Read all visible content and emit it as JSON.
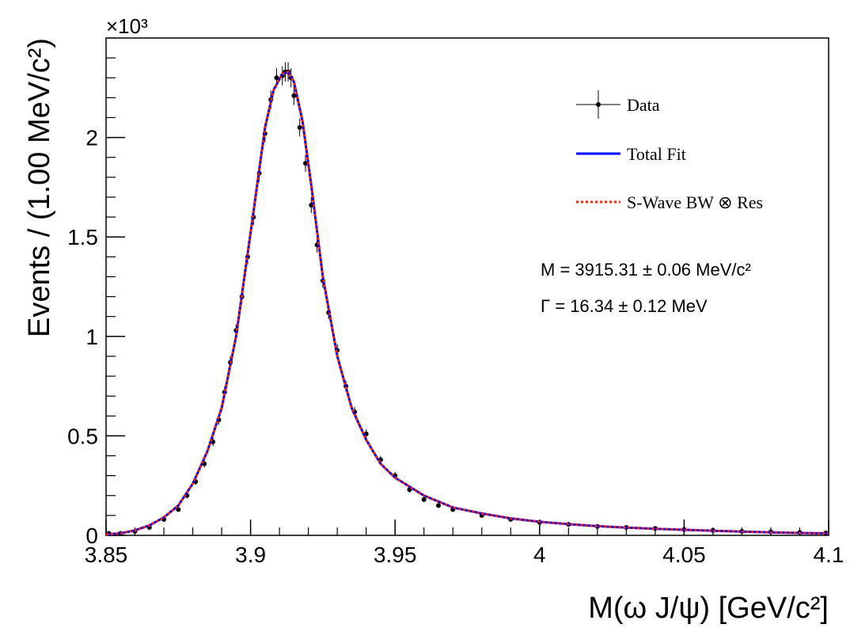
{
  "chart_data": {
    "type": "line",
    "xlabel": "M(ω J/ψ) [GeV/c²]",
    "ylabel": "Events / (1.00 MeV/c²)",
    "y_multiplier": "×10³",
    "xlim": [
      3.85,
      4.1
    ],
    "ylim": [
      0,
      2.5
    ],
    "y_units_scale": 1000,
    "x_ticks": [
      3.85,
      3.9,
      3.95,
      4.0,
      4.05,
      4.1
    ],
    "x_tick_labels": [
      "3.85",
      "3.9",
      "3.95",
      "4",
      "4.05",
      "4.1"
    ],
    "y_ticks": [
      0,
      0.5,
      1,
      1.5,
      2
    ],
    "y_tick_labels": [
      "0",
      "0.5",
      "1",
      "1.5",
      "2"
    ],
    "grid": false,
    "legend_position": "top-right",
    "series": [
      {
        "name": "Data",
        "style": "points-with-errors",
        "color": "#000000",
        "x": [
          3.851,
          3.855,
          3.86,
          3.865,
          3.87,
          3.875,
          3.878,
          3.881,
          3.884,
          3.887,
          3.889,
          3.891,
          3.893,
          3.895,
          3.897,
          3.899,
          3.901,
          3.903,
          3.905,
          3.907,
          3.909,
          3.911,
          3.912,
          3.913,
          3.914,
          3.915,
          3.917,
          3.919,
          3.921,
          3.923,
          3.925,
          3.927,
          3.93,
          3.933,
          3.936,
          3.94,
          3.945,
          3.95,
          3.955,
          3.96,
          3.965,
          3.97,
          3.98,
          3.99,
          4.0,
          4.01,
          4.02,
          4.03,
          4.04,
          4.05,
          4.06,
          4.07,
          4.08,
          4.09,
          4.099
        ],
        "y": [
          0.01,
          0.01,
          0.02,
          0.04,
          0.08,
          0.13,
          0.2,
          0.27,
          0.36,
          0.47,
          0.58,
          0.72,
          0.87,
          1.03,
          1.2,
          1.4,
          1.6,
          1.82,
          2.02,
          2.19,
          2.3,
          2.31,
          2.33,
          2.33,
          2.3,
          2.21,
          2.05,
          1.87,
          1.66,
          1.46,
          1.28,
          1.12,
          0.93,
          0.75,
          0.62,
          0.51,
          0.38,
          0.3,
          0.23,
          0.18,
          0.15,
          0.13,
          0.1,
          0.08,
          0.065,
          0.055,
          0.045,
          0.04,
          0.035,
          0.03,
          0.025,
          0.02,
          0.018,
          0.015,
          0.012
        ]
      },
      {
        "name": "Total Fit",
        "style": "solid-line",
        "color": "#0000ff",
        "x": [
          3.85,
          3.855,
          3.86,
          3.865,
          3.87,
          3.875,
          3.88,
          3.885,
          3.89,
          3.895,
          3.9,
          3.905,
          3.908,
          3.911,
          3.913,
          3.915,
          3.918,
          3.921,
          3.925,
          3.93,
          3.935,
          3.94,
          3.945,
          3.95,
          3.96,
          3.97,
          3.98,
          3.99,
          4.0,
          4.01,
          4.02,
          4.03,
          4.04,
          4.05,
          4.06,
          4.07,
          4.08,
          4.09,
          4.1
        ],
        "y": [
          0.005,
          0.01,
          0.025,
          0.05,
          0.09,
          0.15,
          0.26,
          0.42,
          0.64,
          1.0,
          1.52,
          2.05,
          2.24,
          2.32,
          2.33,
          2.28,
          2.08,
          1.76,
          1.3,
          0.9,
          0.64,
          0.48,
          0.36,
          0.29,
          0.2,
          0.14,
          0.11,
          0.085,
          0.068,
          0.056,
          0.046,
          0.039,
          0.033,
          0.028,
          0.023,
          0.019,
          0.015,
          0.012,
          0.01
        ]
      },
      {
        "name": "S-Wave BW ⊗ Res",
        "style": "dotted-line",
        "color": "#ff2200",
        "x": [
          3.85,
          3.855,
          3.86,
          3.865,
          3.87,
          3.875,
          3.88,
          3.885,
          3.89,
          3.895,
          3.9,
          3.905,
          3.908,
          3.911,
          3.913,
          3.915,
          3.918,
          3.921,
          3.925,
          3.93,
          3.935,
          3.94,
          3.945,
          3.95,
          3.96,
          3.97,
          3.98,
          3.99,
          4.0,
          4.01,
          4.02,
          4.03,
          4.04,
          4.05,
          4.06,
          4.07,
          4.08,
          4.09,
          4.1
        ],
        "y": [
          0.005,
          0.01,
          0.025,
          0.05,
          0.09,
          0.15,
          0.26,
          0.42,
          0.64,
          1.0,
          1.52,
          2.05,
          2.24,
          2.32,
          2.33,
          2.28,
          2.08,
          1.76,
          1.3,
          0.9,
          0.64,
          0.48,
          0.36,
          0.29,
          0.2,
          0.14,
          0.11,
          0.085,
          0.068,
          0.056,
          0.046,
          0.039,
          0.033,
          0.028,
          0.023,
          0.019,
          0.015,
          0.012,
          0.01
        ]
      }
    ],
    "legend": [
      {
        "label": "Data",
        "style": "marker"
      },
      {
        "label": "Total Fit",
        "style": "solid",
        "color": "#0000ff"
      },
      {
        "label": "S-Wave BW ⊗ Res",
        "style": "dotted",
        "color": "#ff2200"
      }
    ],
    "annotations": [
      "M = 3915.31 ± 0.06 MeV/c²",
      "Γ = 16.34 ± 0.12 MeV"
    ]
  }
}
